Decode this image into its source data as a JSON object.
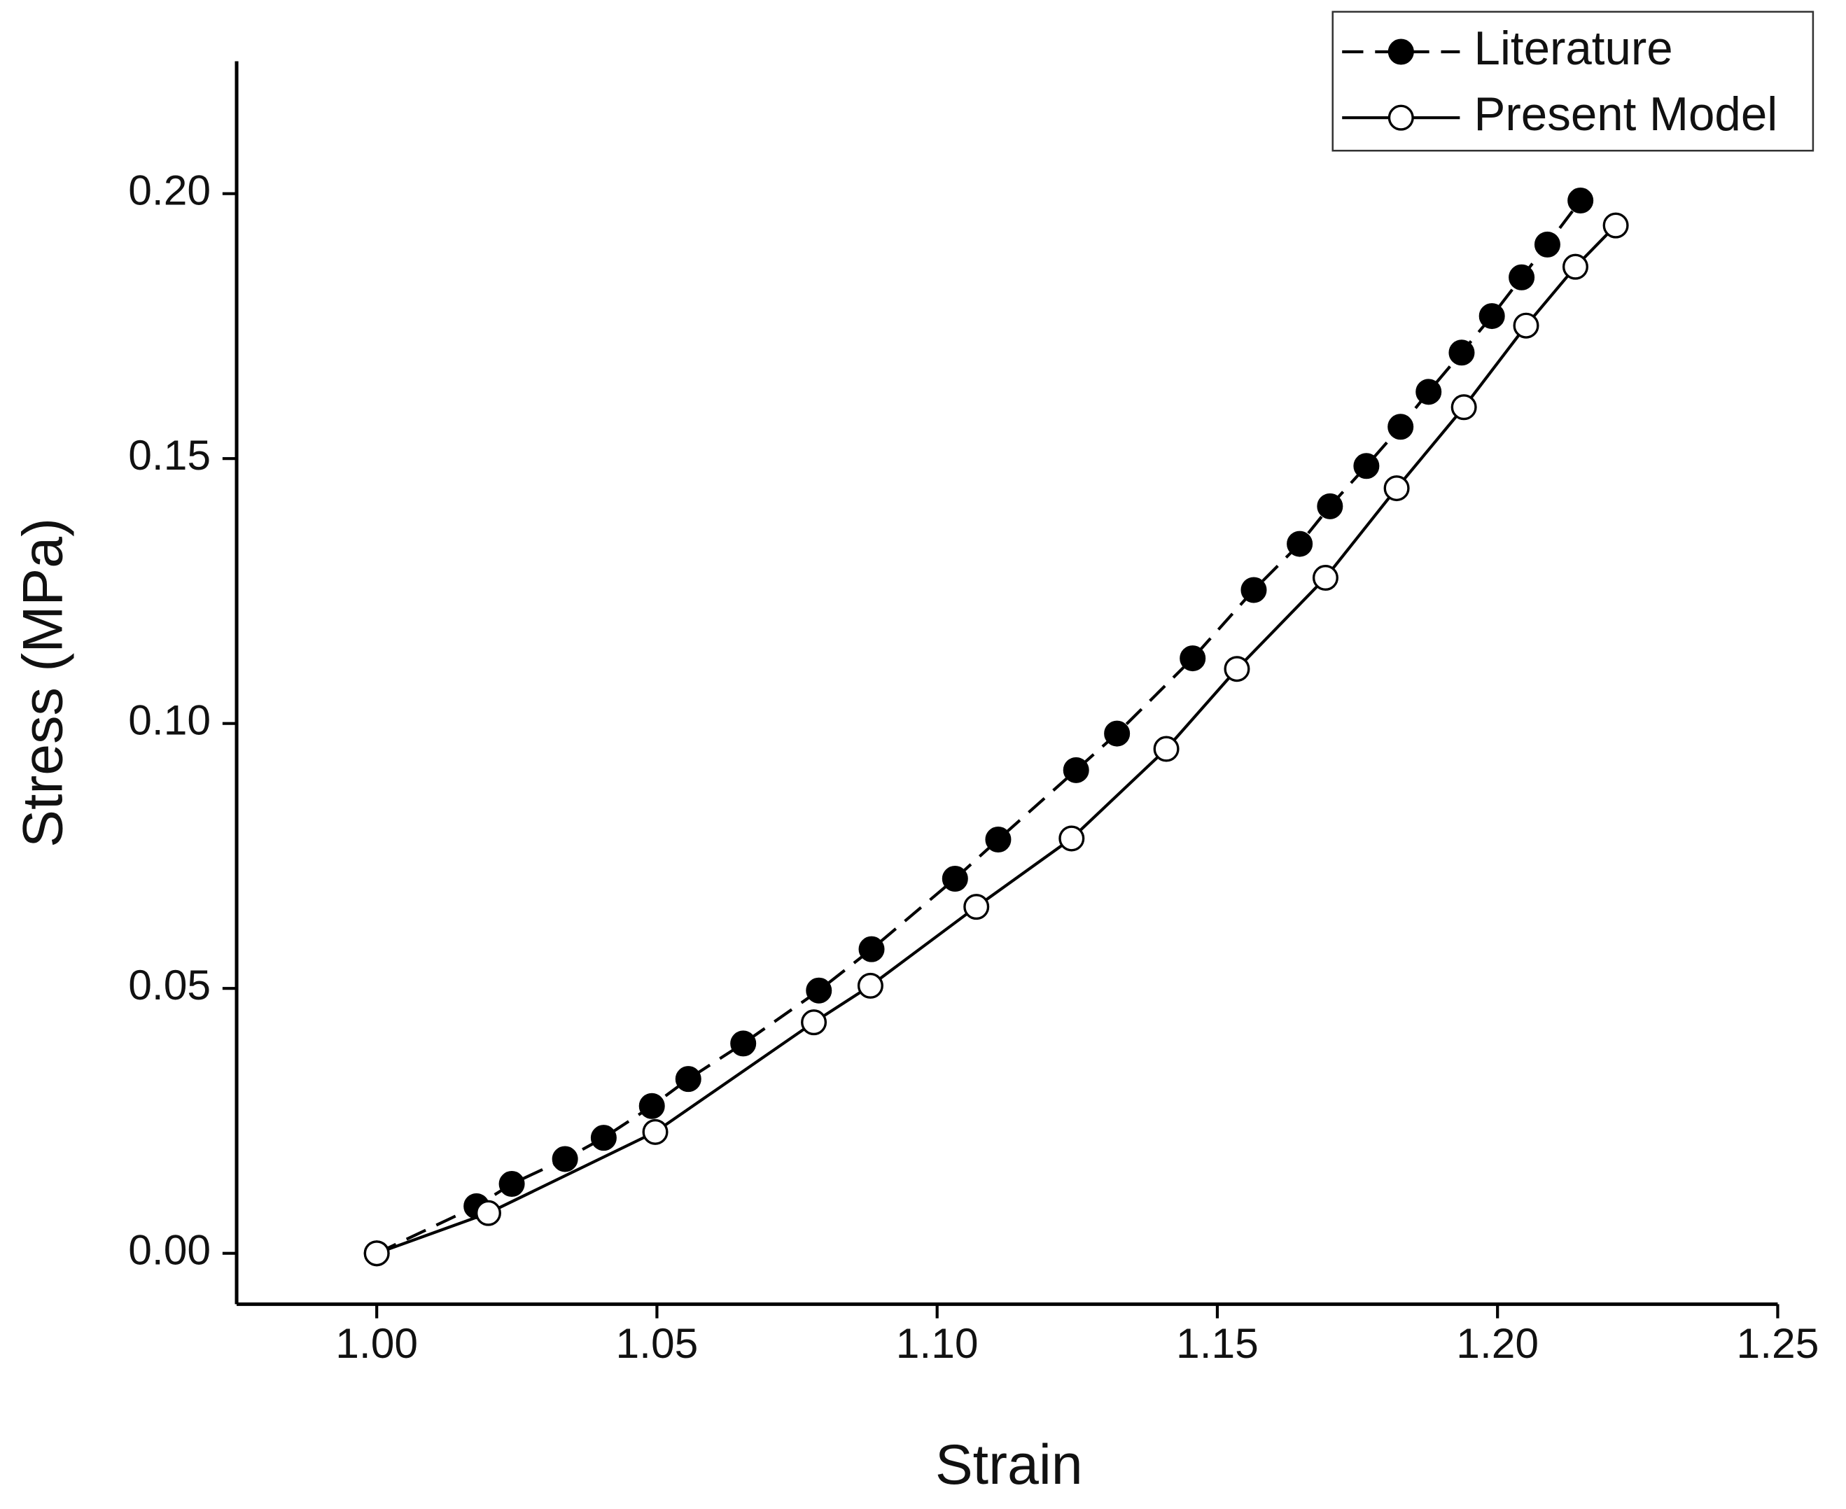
{
  "chart_data": {
    "type": "line",
    "xlabel": "Strain",
    "ylabel": "Stress (MPa)",
    "xlim": [
      0.975,
      1.25
    ],
    "ylim": [
      -0.0096,
      0.225
    ],
    "xticks": [
      {
        "value": 1.0,
        "label": "1.00"
      },
      {
        "value": 1.05,
        "label": "1.05"
      },
      {
        "value": 1.1,
        "label": "1.10"
      },
      {
        "value": 1.15,
        "label": "1.15"
      },
      {
        "value": 1.2,
        "label": "1.20"
      },
      {
        "value": 1.25,
        "label": "1.25"
      }
    ],
    "yticks": [
      {
        "value": 0,
        "label": "0.00"
      },
      0.05,
      {
        "value": 0.1,
        "label": "0.10"
      },
      0.15,
      {
        "value": 0.2,
        "label": "0.20"
      }
    ],
    "grid": false,
    "legend": "upper right",
    "series": [
      {
        "name": "Literature",
        "color": "#000000",
        "linestyle": "dashed",
        "marker_filled": true,
        "x": [
          1.0,
          1.0178,
          1.0241,
          1.0336,
          1.0405,
          1.0491,
          1.0556,
          1.0654,
          1.0789,
          1.0883,
          1.1032,
          1.1109,
          1.1248,
          1.1321,
          1.1456,
          1.1565,
          1.1647,
          1.1701,
          1.1766,
          1.1827,
          1.1877,
          1.1936,
          1.199,
          1.2043,
          1.2089,
          1.2148
        ],
        "values": [
          0.0,
          0.0089,
          0.0131,
          0.0178,
          0.0218,
          0.0278,
          0.0329,
          0.0396,
          0.0496,
          0.0574,
          0.0707,
          0.0781,
          0.0912,
          0.0981,
          0.1123,
          0.1252,
          0.1339,
          0.141,
          0.1486,
          0.156,
          0.1626,
          0.17,
          0.1769,
          0.1842,
          0.1904,
          0.1987
        ]
      },
      {
        "name": "Present Model",
        "color": "#000000",
        "linestyle": "solid",
        "marker_filled": false,
        "x": [
          1.0,
          1.0199,
          1.0497,
          1.078,
          1.0881,
          1.107,
          1.124,
          1.1409,
          1.1535,
          1.1693,
          1.182,
          1.194,
          1.2051,
          1.2139,
          1.2211
        ],
        "values": [
          0.0,
          0.0076,
          0.0229,
          0.0436,
          0.0505,
          0.0654,
          0.0783,
          0.0952,
          0.1103,
          0.1275,
          0.1444,
          0.1597,
          0.1751,
          0.1862,
          0.194
        ]
      }
    ]
  }
}
